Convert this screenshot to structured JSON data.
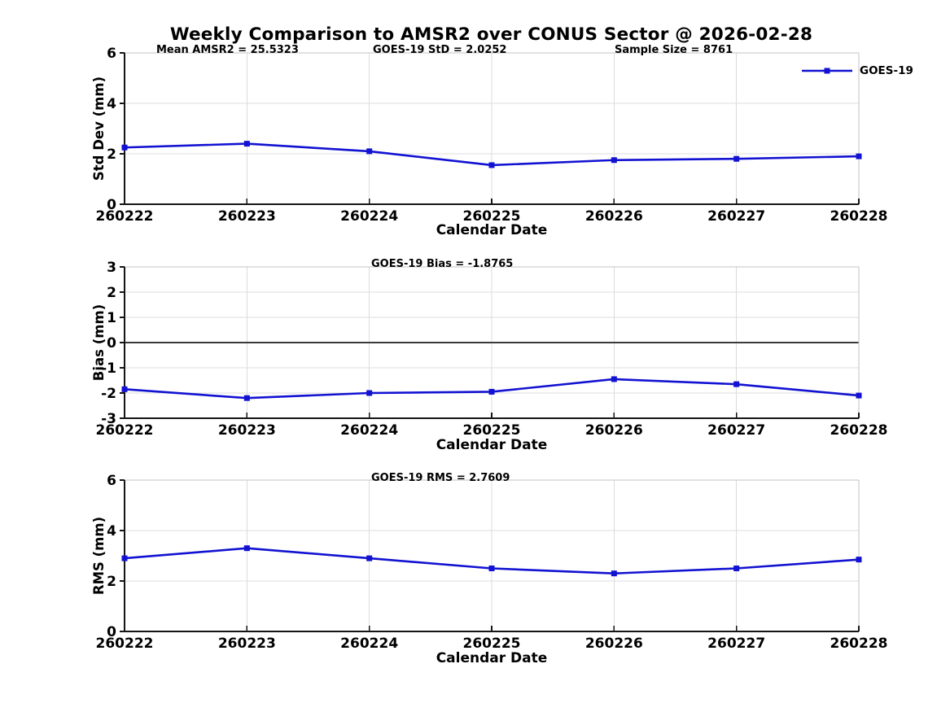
{
  "figure": {
    "title": "Weekly Comparison to AMSR2 over CONUS Sector @ 2026-02-28",
    "background": "#ffffff"
  },
  "colors": {
    "series_line": "#1212d2",
    "grid": "#dcdcdc",
    "frame_light": "#c3c3c3",
    "axis_dark": "#151515",
    "zero_line": "#3a3a3a",
    "text": "#000000"
  },
  "legend": {
    "label": "GOES-19",
    "position": "top-right",
    "marker": "filled-square"
  },
  "chart_data": [
    {
      "type": "line",
      "categories": [
        "260222",
        "260223",
        "260224",
        "260225",
        "260226",
        "260227",
        "260228"
      ],
      "series": [
        {
          "name": "GOES-19",
          "values": [
            2.25,
            2.4,
            2.1,
            1.55,
            1.75,
            1.8,
            1.9
          ]
        }
      ],
      "xlabel": "Calendar Date",
      "ylabel": "Std Dev (mm)",
      "ylim": [
        0,
        6
      ],
      "yticks": [
        0,
        2,
        4,
        6
      ],
      "grid": true,
      "zero_line": false,
      "legend_entry": "GOES-19",
      "annotations": [
        "Mean AMSR2 = 25.5323",
        "GOES-19 StD = 2.0252",
        "Sample Size = 8761"
      ]
    },
    {
      "type": "line",
      "categories": [
        "260222",
        "260223",
        "260224",
        "260225",
        "260226",
        "260227",
        "260228"
      ],
      "series": [
        {
          "name": "GOES-19",
          "values": [
            -1.85,
            -2.2,
            -2.0,
            -1.95,
            -1.45,
            -1.65,
            -2.1
          ]
        }
      ],
      "xlabel": "Calendar Date",
      "ylabel": "Bias (mm)",
      "ylim": [
        -3,
        3
      ],
      "yticks": [
        -3,
        -2,
        -1,
        0,
        1,
        2,
        3
      ],
      "grid": true,
      "zero_line": true,
      "annotations": [
        "GOES-19 Bias  = -1.8765"
      ]
    },
    {
      "type": "line",
      "categories": [
        "260222",
        "260223",
        "260224",
        "260225",
        "260226",
        "260227",
        "260228"
      ],
      "series": [
        {
          "name": "GOES-19",
          "values": [
            2.9,
            3.3,
            2.9,
            2.5,
            2.3,
            2.5,
            2.85
          ]
        }
      ],
      "xlabel": "Calendar Date",
      "ylabel": "RMS (mm)",
      "ylim": [
        0,
        6
      ],
      "yticks": [
        0,
        2,
        4,
        6
      ],
      "grid": true,
      "zero_line": false,
      "annotations": [
        "GOES-19 RMS = 2.7609"
      ]
    }
  ]
}
